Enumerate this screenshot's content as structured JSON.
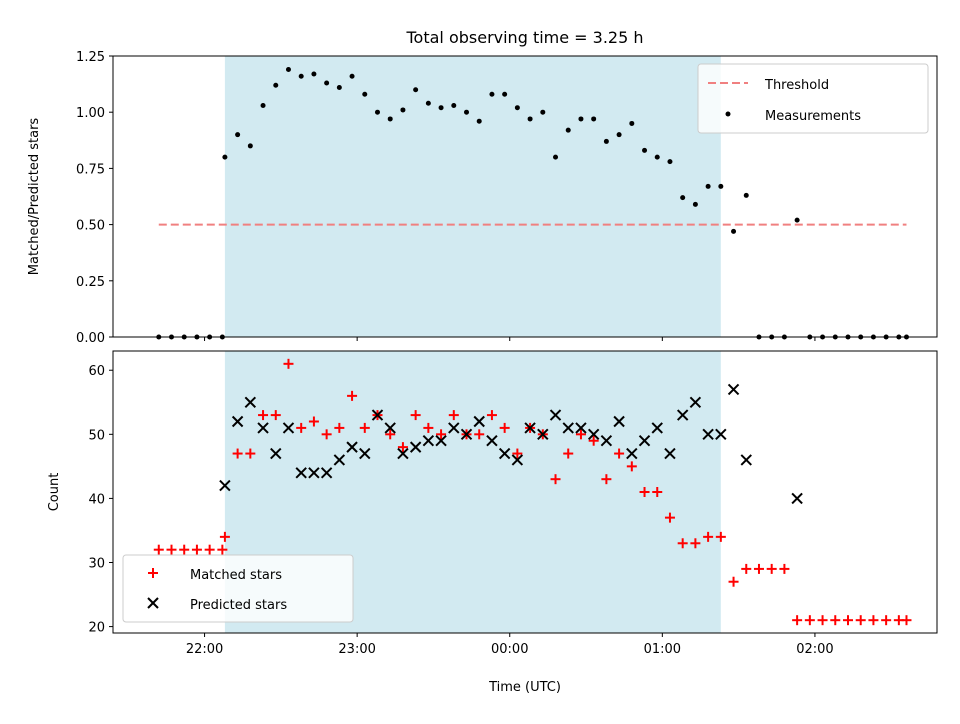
{
  "chart_data": [
    {
      "type": "scatter",
      "title": "Total observing time = 3.25 h",
      "xlabel": "",
      "ylabel": "Matched/Predicted stars",
      "xlim": [
        "21:24",
        "02:48"
      ],
      "ylim": [
        0,
        1.25
      ],
      "yticks": [
        "0.00",
        "0.25",
        "0.50",
        "0.75",
        "1.00",
        "1.25"
      ],
      "shaded_interval": [
        "22:08",
        "01:23"
      ],
      "shade_color": "#add8e6",
      "legend": {
        "placement": "top-right",
        "entries": [
          "Threshold",
          "Measurements"
        ]
      },
      "threshold": {
        "name": "Threshold",
        "value": 0.5,
        "x": [
          "21:42",
          "02:36"
        ],
        "color": "#f08080"
      },
      "series": [
        {
          "name": "Measurements",
          "color": "#000000",
          "marker": "dot",
          "x": [
            "21:42",
            "21:47",
            "21:52",
            "21:57",
            "22:02",
            "22:07",
            "22:08",
            "22:13",
            "22:18",
            "22:23",
            "22:28",
            "22:33",
            "22:38",
            "22:43",
            "22:48",
            "22:53",
            "22:58",
            "23:03",
            "23:08",
            "23:13",
            "23:18",
            "23:23",
            "23:28",
            "23:33",
            "23:38",
            "23:43",
            "23:48",
            "23:53",
            "23:58",
            "00:03",
            "00:08",
            "00:13",
            "00:18",
            "00:23",
            "00:28",
            "00:33",
            "00:38",
            "00:43",
            "00:48",
            "00:53",
            "00:58",
            "01:03",
            "01:08",
            "01:13",
            "01:18",
            "01:23",
            "01:28",
            "01:33",
            "01:38",
            "01:43",
            "01:48",
            "01:53",
            "01:58",
            "02:03",
            "02:08",
            "02:13",
            "02:18",
            "02:23",
            "02:28",
            "02:33",
            "02:36"
          ],
          "y": [
            0,
            0,
            0,
            0,
            0,
            0,
            0.8,
            0.9,
            0.85,
            1.03,
            1.12,
            1.19,
            1.16,
            1.17,
            1.13,
            1.11,
            1.16,
            1.08,
            1.0,
            0.97,
            1.01,
            1.1,
            1.04,
            1.02,
            1.03,
            1.0,
            0.96,
            1.08,
            1.08,
            1.02,
            0.97,
            1.0,
            0.8,
            0.92,
            0.97,
            0.97,
            0.87,
            0.9,
            0.95,
            0.83,
            0.8,
            0.78,
            0.62,
            0.59,
            0.67,
            0.67,
            0.47,
            0.63,
            0,
            0,
            0,
            0.52,
            0,
            0,
            0,
            0,
            0,
            0,
            0,
            0,
            0
          ]
        }
      ]
    },
    {
      "type": "scatter",
      "title": "",
      "xlabel": "Time (UTC)",
      "ylabel": "Count",
      "xlim": [
        "21:24",
        "02:48"
      ],
      "ylim": [
        19,
        63
      ],
      "yticks": [
        "20",
        "30",
        "40",
        "50",
        "60"
      ],
      "xticks": [
        "22:00",
        "23:00",
        "00:00",
        "01:00",
        "02:00"
      ],
      "shaded_interval": [
        "22:08",
        "01:23"
      ],
      "shade_color": "#add8e6",
      "legend": {
        "placement": "bottom-left",
        "entries": [
          "Matched stars",
          "Predicted stars"
        ]
      },
      "series": [
        {
          "name": "Matched stars",
          "color": "#ff0000",
          "marker": "plus",
          "x": [
            "21:42",
            "21:47",
            "21:52",
            "21:57",
            "22:02",
            "22:07",
            "22:08",
            "22:13",
            "22:18",
            "22:23",
            "22:28",
            "22:33",
            "22:38",
            "22:43",
            "22:48",
            "22:53",
            "22:58",
            "23:03",
            "23:08",
            "23:13",
            "23:18",
            "23:23",
            "23:28",
            "23:33",
            "23:38",
            "23:43",
            "23:48",
            "23:53",
            "23:58",
            "00:03",
            "00:08",
            "00:13",
            "00:18",
            "00:23",
            "00:28",
            "00:33",
            "00:38",
            "00:43",
            "00:48",
            "00:53",
            "00:58",
            "01:03",
            "01:08",
            "01:13",
            "01:18",
            "01:23",
            "01:28",
            "01:33",
            "01:38",
            "01:43",
            "01:48",
            "01:53",
            "01:58",
            "02:03",
            "02:08",
            "02:13",
            "02:18",
            "02:23",
            "02:28",
            "02:33",
            "02:36"
          ],
          "y": [
            32,
            32,
            32,
            32,
            32,
            32,
            34,
            47,
            47,
            53,
            53,
            61,
            51,
            52,
            50,
            51,
            56,
            51,
            53,
            50,
            48,
            53,
            51,
            50,
            53,
            50,
            50,
            53,
            51,
            47,
            51,
            50,
            43,
            47,
            50,
            49,
            43,
            47,
            45,
            41,
            41,
            37,
            33,
            33,
            34,
            34,
            27,
            29,
            29,
            29,
            29,
            21,
            21,
            21,
            21,
            21,
            21,
            21,
            21,
            21,
            21
          ]
        },
        {
          "name": "Predicted stars",
          "color": "#000000",
          "marker": "x",
          "x": [
            "22:08",
            "22:13",
            "22:18",
            "22:23",
            "22:28",
            "22:33",
            "22:38",
            "22:43",
            "22:48",
            "22:53",
            "22:58",
            "23:03",
            "23:08",
            "23:13",
            "23:18",
            "23:23",
            "23:28",
            "23:33",
            "23:38",
            "23:43",
            "23:48",
            "23:53",
            "23:58",
            "00:03",
            "00:08",
            "00:13",
            "00:18",
            "00:23",
            "00:28",
            "00:33",
            "00:38",
            "00:43",
            "00:48",
            "00:53",
            "00:58",
            "01:03",
            "01:08",
            "01:13",
            "01:18",
            "01:23",
            "01:28",
            "01:33",
            "01:53"
          ],
          "y": [
            42,
            52,
            55,
            51,
            47,
            51,
            44,
            44,
            44,
            46,
            48,
            47,
            53,
            51,
            47,
            48,
            49,
            49,
            51,
            50,
            52,
            49,
            47,
            46,
            51,
            50,
            53,
            51,
            51,
            50,
            49,
            52,
            47,
            49,
            51,
            47,
            53,
            55,
            50,
            50,
            57,
            46,
            40
          ]
        }
      ]
    }
  ]
}
